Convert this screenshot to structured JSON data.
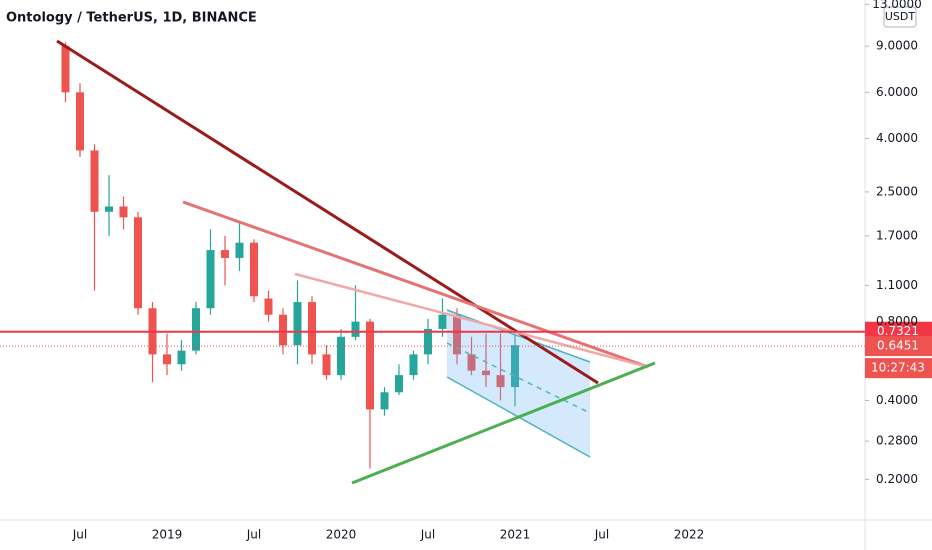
{
  "chart_data": {
    "type": "candlestick",
    "title": "Ontology / TetherUS, 1D, BINANCE",
    "currency": "USDT",
    "countdown": "10:27:43",
    "log_scale": true,
    "up_color": "#26a69a",
    "down_color": "#ef5350",
    "categories": [
      null,
      "Jul",
      null,
      null,
      null,
      null,
      null,
      "2019",
      null,
      null,
      null,
      null,
      null,
      "Jul",
      null,
      null,
      null,
      null,
      null,
      "2020",
      null,
      null,
      null,
      null,
      null,
      "Jul",
      null,
      null,
      null,
      null,
      null,
      "2021",
      null,
      null,
      null,
      null,
      null,
      "Jul",
      null,
      null,
      null,
      null,
      null,
      "2022",
      null
    ],
    "open": [
      9.0,
      6.0,
      3.6,
      2.1,
      2.2,
      2.0,
      0.9,
      0.6,
      0.55,
      0.62,
      0.9,
      1.5,
      1.4,
      1.6,
      0.98,
      0.85,
      0.65,
      0.95,
      0.6,
      0.5,
      0.7,
      0.8,
      0.37,
      0.43,
      0.5,
      0.6,
      0.75,
      0.85,
      0.6,
      0.52,
      0.5,
      0.45,
      null,
      null,
      null,
      null,
      null,
      null,
      null,
      null,
      null,
      null,
      null,
      null,
      null
    ],
    "high": [
      9.3,
      6.5,
      3.8,
      2.9,
      2.4,
      2.1,
      0.95,
      0.72,
      0.68,
      0.95,
      1.8,
      1.7,
      1.9,
      1.65,
      1.05,
      0.9,
      1.15,
      1.0,
      0.65,
      0.75,
      1.1,
      0.82,
      0.45,
      0.55,
      0.62,
      0.82,
      0.98,
      0.9,
      0.7,
      0.72,
      0.72,
      0.72,
      null,
      null,
      null,
      null,
      null,
      null,
      null,
      null,
      null,
      null,
      null,
      null,
      null
    ],
    "low": [
      5.5,
      3.4,
      1.05,
      1.7,
      1.8,
      0.85,
      0.47,
      0.5,
      0.52,
      0.6,
      0.85,
      1.1,
      1.25,
      0.95,
      0.8,
      0.6,
      0.55,
      0.55,
      0.48,
      0.48,
      0.68,
      0.22,
      0.35,
      0.42,
      0.48,
      0.55,
      0.7,
      0.55,
      0.5,
      0.45,
      0.4,
      0.38,
      null,
      null,
      null,
      null,
      null,
      null,
      null,
      null,
      null,
      null,
      null,
      null,
      null
    ],
    "close": [
      6.0,
      3.6,
      2.1,
      2.2,
      2.0,
      0.9,
      0.6,
      0.55,
      0.62,
      0.9,
      1.5,
      1.4,
      1.6,
      1.0,
      0.85,
      0.65,
      0.95,
      0.6,
      0.5,
      0.7,
      0.8,
      0.37,
      0.43,
      0.5,
      0.6,
      0.75,
      0.85,
      0.6,
      0.52,
      0.5,
      0.45,
      0.65,
      null,
      null,
      null,
      null,
      null,
      null,
      null,
      null,
      null,
      null,
      null,
      null,
      null
    ],
    "ylim": [
      0.14,
      13.5
    ],
    "yticks": [
      {
        "value": 13,
        "label": "13.0000"
      },
      {
        "value": 9,
        "label": "9.0000"
      },
      {
        "value": 6,
        "label": "6.0000"
      },
      {
        "value": 4,
        "label": "4.0000"
      },
      {
        "value": 2.5,
        "label": "2.5000"
      },
      {
        "value": 1.7,
        "label": "1.7000"
      },
      {
        "value": 1.1,
        "label": "1.1000"
      },
      {
        "value": 0.8,
        "label": "0.8000"
      },
      {
        "value": 0.4,
        "label": "0.4000"
      },
      {
        "value": 0.28,
        "label": "0.2800"
      },
      {
        "value": 0.2,
        "label": "0.2000"
      }
    ],
    "alert_price": 0.7321,
    "alert_color": "#f23645",
    "last_price": 0.6451
  }
}
